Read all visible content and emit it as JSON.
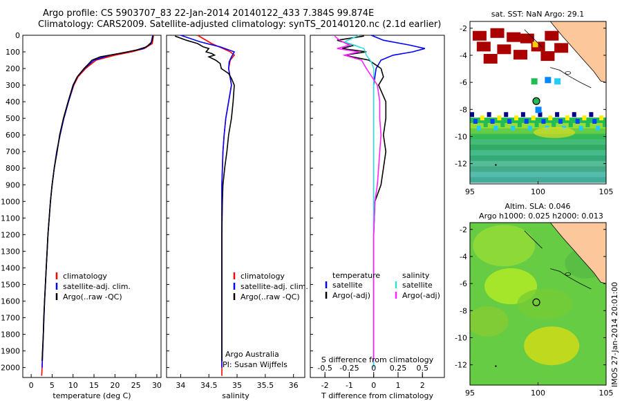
{
  "header": {
    "line1": "Argo profile: CS 5903707_83 22-Jan-2014 20140122_433 7.384S 99.874E",
    "line2": "Climatology: CARS2009. Satellite-adjusted climatology: synTS_20140120.nc (2.1d earlier)"
  },
  "colors": {
    "climatology": "#ff0000",
    "satellite": "#0000ff",
    "argo": "#000000",
    "sat_salinity": "#33dddd",
    "argo_salinity": "#ff22ff",
    "land": "#fcc89b"
  },
  "depth_axis": {
    "ticks": [
      "0",
      "100",
      "200",
      "300",
      "400",
      "500",
      "600",
      "700",
      "800",
      "900",
      "1000",
      "1100",
      "1200",
      "1300",
      "1400",
      "1500",
      "1600",
      "1700",
      "1800",
      "1900",
      "2000"
    ],
    "ylim": [
      0,
      2060
    ]
  },
  "legend": {
    "climatology": "climatology",
    "satellite": "satellite-adj. clim.",
    "argo": "Argo(..raw -QC)"
  },
  "legend3": {
    "temp_head": "temperature",
    "sal_head": "salinity",
    "sat_t": "satellite",
    "argo_t": "Argo(-adj)",
    "sat_s": "satellite",
    "argo_s": "Argo(-adj)"
  },
  "credits": {
    "line1": "Argo Australia",
    "line2": "PI: Susan Wijffels"
  },
  "chart_data": [
    {
      "type": "line",
      "xlabel": "temperature (deg C)",
      "ylabel": "",
      "xlim": [
        -2,
        31
      ],
      "ylim": [
        0,
        2060
      ],
      "xticks": [
        "0",
        "5",
        "10",
        "15",
        "20",
        "25",
        "30"
      ],
      "series": [
        {
          "name": "climatology",
          "depth": [
            0,
            50,
            80,
            100,
            120,
            150,
            200,
            250,
            300,
            400,
            500,
            600,
            700,
            800,
            900,
            1000,
            1200,
            1400,
            1600,
            1800,
            2000,
            2050
          ],
          "values": [
            29.2,
            28.9,
            27.0,
            24.0,
            20.0,
            15.5,
            13.0,
            11.2,
            10.2,
            8.9,
            7.8,
            6.9,
            6.1,
            5.5,
            5.0,
            4.6,
            4.0,
            3.6,
            3.2,
            2.9,
            2.6,
            2.5
          ]
        },
        {
          "name": "satellite-adj. clim.",
          "depth": [
            0,
            50,
            80,
            100,
            120,
            150,
            200,
            250,
            300,
            400,
            500,
            600,
            700,
            800,
            900,
            1000,
            1200,
            1400,
            1600,
            1800,
            2000
          ],
          "values": [
            29.0,
            28.6,
            26.8,
            23.0,
            18.8,
            15.0,
            12.7,
            11.0,
            10.1,
            8.9,
            7.8,
            6.9,
            6.1,
            5.5,
            5.0,
            4.6,
            4.0,
            3.6,
            3.2,
            2.9,
            2.6
          ]
        },
        {
          "name": "Argo(..raw -QC)",
          "depth": [
            5,
            40,
            70,
            90,
            110,
            130,
            150,
            175,
            200,
            250,
            300,
            400,
            500,
            600,
            700,
            800,
            900,
            1000,
            1100,
            1200,
            1300,
            1400,
            1500,
            1600,
            1700,
            1800,
            1900,
            1960
          ],
          "values": [
            29.1,
            28.8,
            27.5,
            25.0,
            21.0,
            16.5,
            14.5,
            13.6,
            12.6,
            11.0,
            10.0,
            8.8,
            7.7,
            6.8,
            6.2,
            5.5,
            5.0,
            4.6,
            4.3,
            4.0,
            3.8,
            3.6,
            3.4,
            3.2,
            3.0,
            2.9,
            2.7,
            2.6
          ]
        }
      ]
    },
    {
      "type": "line",
      "xlabel": "salinity",
      "xlim": [
        33.75,
        36.2
      ],
      "ylim": [
        0,
        2060
      ],
      "xticks": [
        "34",
        "34.5",
        "35",
        "35.5",
        "36"
      ],
      "series": [
        {
          "name": "climatology",
          "depth": [
            0,
            50,
            80,
            100,
            120,
            150,
            200,
            300,
            400,
            500,
            600,
            700,
            800,
            900,
            1000,
            1200,
            1500,
            1800,
            2050
          ],
          "values": [
            34.3,
            34.55,
            34.75,
            34.88,
            34.95,
            34.88,
            34.85,
            34.9,
            34.85,
            34.8,
            34.77,
            34.75,
            34.74,
            34.73,
            34.73,
            34.73,
            34.73,
            34.73,
            34.73
          ]
        },
        {
          "name": "satellite-adj. clim.",
          "depth": [
            0,
            40,
            70,
            100,
            130,
            160,
            200,
            300,
            400,
            500,
            600,
            700,
            800,
            900,
            1000,
            1200,
            1500,
            1800,
            2000
          ],
          "values": [
            34.0,
            34.35,
            34.7,
            34.95,
            34.9,
            34.86,
            34.85,
            34.9,
            34.85,
            34.8,
            34.77,
            34.75,
            34.74,
            34.73,
            34.73,
            34.73,
            34.73,
            34.73,
            34.73
          ]
        },
        {
          "name": "Argo(..raw -QC)",
          "depth": [
            5,
            30,
            50,
            70,
            80,
            100,
            110,
            120,
            130,
            150,
            170,
            200,
            230,
            260,
            300,
            400,
            500,
            600,
            700,
            800,
            900,
            1000,
            1200,
            1400,
            1600,
            1800,
            1960
          ],
          "values": [
            33.9,
            34.1,
            34.3,
            34.4,
            34.5,
            34.45,
            34.55,
            34.6,
            34.5,
            34.62,
            34.7,
            34.72,
            34.85,
            34.9,
            34.95,
            34.93,
            34.9,
            34.85,
            34.82,
            34.78,
            34.75,
            34.74,
            34.73,
            34.73,
            34.73,
            34.73,
            34.73
          ]
        }
      ]
    },
    {
      "type": "line",
      "xlabel": "T difference from climatology",
      "xlabel_top": "S difference from climatology",
      "xlim": [
        -2.6,
        2.9
      ],
      "ylim": [
        0,
        2060
      ],
      "xticks": [
        "-2",
        "-1",
        "0",
        "1",
        "2"
      ],
      "xticks_top": [
        "-0.5",
        "-0.25",
        "0",
        "0.25",
        "0.5"
      ],
      "series": [
        {
          "name": "satellite",
          "depth": [
            0,
            30,
            60,
            80,
            100,
            120,
            150,
            200,
            300,
            500,
            1000,
            1500,
            2000
          ],
          "values": [
            -0.1,
            0.4,
            1.5,
            2.1,
            1.6,
            0.8,
            0.3,
            0.1,
            0.0,
            0.0,
            0.0,
            0.0,
            0.0
          ]
        },
        {
          "name": "Argo(-adj)",
          "depth": [
            5,
            30,
            60,
            80,
            100,
            120,
            150,
            200,
            250,
            300,
            400,
            500,
            600,
            700,
            800,
            900,
            1000,
            1200,
            1500,
            1800,
            1960
          ],
          "values": [
            -0.4,
            -1.5,
            -0.8,
            -1.3,
            -0.3,
            -1.2,
            -0.2,
            0.3,
            0.4,
            0.2,
            0.5,
            0.5,
            0.4,
            0.5,
            0.4,
            0.3,
            0.05,
            0.0,
            0.0,
            0.0,
            0.0
          ]
        },
        {
          "name": "salinity satellite",
          "depth": [
            0,
            40,
            80,
            120,
            160,
            200,
            300,
            500,
            1000,
            1500,
            2000
          ],
          "values": [
            -0.6,
            -1.2,
            -0.4,
            -0.3,
            -0.1,
            0.0,
            0.0,
            0.0,
            0.0,
            0.0,
            0.0
          ]
        },
        {
          "name": "salinity Argo(-adj)",
          "depth": [
            5,
            30,
            60,
            80,
            100,
            120,
            150,
            200,
            300,
            400,
            500,
            600,
            700,
            800,
            900,
            1000,
            1200,
            1500,
            1800,
            1960
          ],
          "values": [
            -1.6,
            -1.4,
            -1.0,
            -1.5,
            -0.6,
            -1.2,
            -0.5,
            -0.3,
            0.15,
            0.25,
            0.25,
            0.3,
            0.25,
            0.2,
            0.15,
            0.05,
            0.0,
            0.0,
            0.0,
            0.0
          ]
        }
      ]
    },
    {
      "type": "heatmap",
      "title": "sat. SST: NaN Argo: 29.1",
      "xlim": [
        95,
        105
      ],
      "ylim": [
        -13.5,
        -1.5
      ],
      "xticks": [
        "95",
        "100",
        "105"
      ],
      "yticks": [
        "-2",
        "-4",
        "-6",
        "-8",
        "-10",
        "-12"
      ],
      "argo_position": [
        99.874,
        -7.384
      ]
    },
    {
      "type": "heatmap",
      "title": "Altim. SLA: 0.046",
      "subtitle": "Argo h1000: 0.025 h2000: 0.013",
      "xlim": [
        95,
        105
      ],
      "ylim": [
        -13.5,
        -1.5
      ],
      "xticks": [
        "95",
        "100",
        "105"
      ],
      "yticks": [
        "-2",
        "-4",
        "-6",
        "-8",
        "-10",
        "-12"
      ],
      "argo_position": [
        99.874,
        -7.384
      ]
    }
  ],
  "footer": {
    "stamp": "IMOS 27-Jan-2014 20:01:00"
  }
}
